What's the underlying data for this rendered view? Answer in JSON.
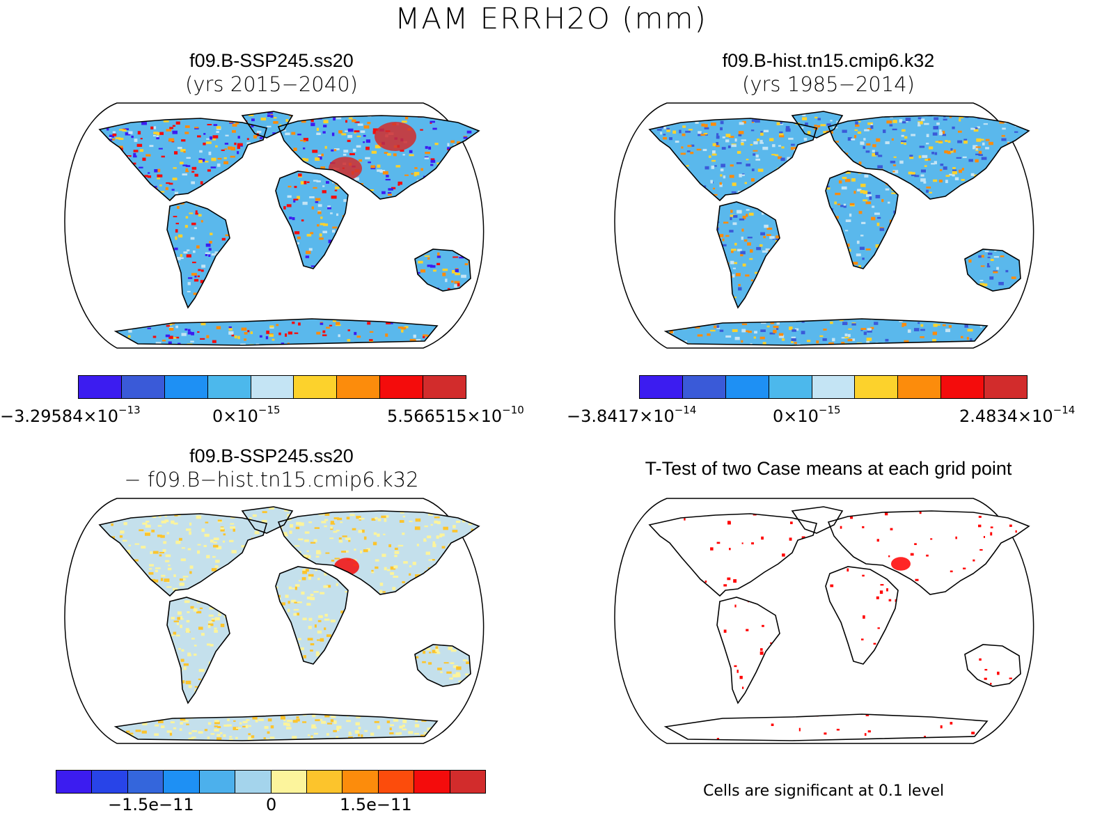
{
  "figure": {
    "title": "MAM ERRH2O (mm)"
  },
  "panels": [
    {
      "id": "case1",
      "title": "f09.B-SSP245.ss20",
      "subtitle": "(yrs 2015−2040)",
      "pattern": "mixed",
      "colorbar": {
        "colors": [
          "#3c1cf0",
          "#3a5ad8",
          "#1e90f4",
          "#4cb8ec",
          "#c4e4f4",
          "#fcd22c",
          "#fc8c0c",
          "#f40c0c",
          "#d22c2c"
        ],
        "labels": [
          {
            "mantissa": "−3.29584×10",
            "exp": "−13"
          },
          {
            "mantissa": "0×10",
            "exp": "−15"
          },
          {
            "mantissa": "5.566515×10",
            "exp": "−10"
          }
        ]
      }
    },
    {
      "id": "case2",
      "title": "f09.B-hist.tn15.cmip6.k32",
      "subtitle": "(yrs 1985−2014)",
      "pattern": "mostly-blue",
      "colorbar": {
        "colors": [
          "#3c1cf0",
          "#3a5ad8",
          "#1e90f4",
          "#4cb8ec",
          "#c4e4f4",
          "#fcd22c",
          "#fc8c0c",
          "#f40c0c",
          "#d22c2c"
        ],
        "labels": [
          {
            "mantissa": "−3.8417×10",
            "exp": "−14"
          },
          {
            "mantissa": "0×10",
            "exp": "−15"
          },
          {
            "mantissa": "2.4834×10",
            "exp": "−14"
          }
        ]
      }
    },
    {
      "id": "diff",
      "title": "f09.B-SSP245.ss20",
      "subtitle": "− f09.B−hist.tn15.cmip6.k32",
      "pattern": "diff",
      "colorbar": {
        "colors": [
          "#3c1cf0",
          "#2844e8",
          "#3466dc",
          "#1e90f4",
          "#4cb0ec",
          "#a4d4ec",
          "#fcf49c",
          "#fcc42c",
          "#fc8c0c",
          "#fc4c0c",
          "#f40c0c",
          "#d22c2c"
        ],
        "labels": [
          {
            "mantissa": "−1.5e−11",
            "exp": ""
          },
          {
            "mantissa": "0",
            "exp": ""
          },
          {
            "mantissa": "1.5e−11",
            "exp": ""
          }
        ]
      }
    },
    {
      "id": "ttest",
      "title": "T-Test of two Case means at each grid point",
      "subtitle": "",
      "pattern": "ttest",
      "note": "Cells are significant at 0.1 level"
    }
  ],
  "colors": {
    "land_blue": "#5ab8ec",
    "land_light": "#c8e6f4",
    "yellow": "#fcf49c",
    "significant": "#ff0000"
  }
}
